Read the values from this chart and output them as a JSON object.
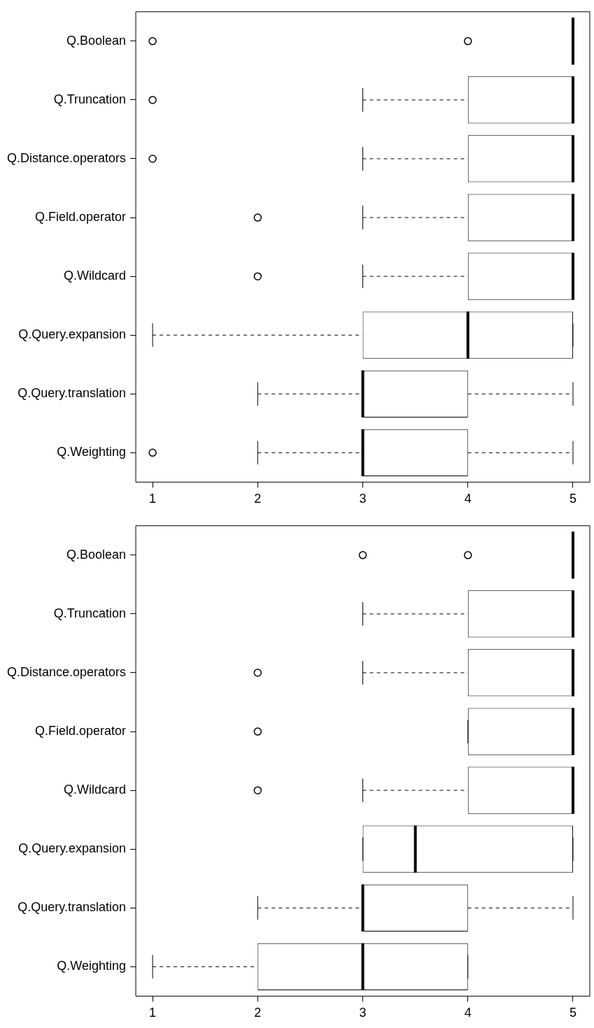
{
  "chart_data": [
    {
      "type": "box",
      "orientation": "horizontal",
      "grid": false,
      "categories": [
        "Q.Boolean",
        "Q.Truncation",
        "Q.Distance.operators",
        "Q.Field.operator",
        "Q.Wildcard",
        "Q.Query.expansion",
        "Q.Query.translation",
        "Q.Weighting"
      ],
      "boxes": [
        {
          "low": 5,
          "q1": 5,
          "median": 5,
          "q3": 5,
          "high": 5,
          "outliers": [
            1,
            4
          ]
        },
        {
          "low": 3,
          "q1": 4,
          "median": 5,
          "q3": 5,
          "high": 5,
          "outliers": [
            1
          ]
        },
        {
          "low": 3,
          "q1": 4,
          "median": 5,
          "q3": 5,
          "high": 5,
          "outliers": [
            1
          ]
        },
        {
          "low": 3,
          "q1": 4,
          "median": 5,
          "q3": 5,
          "high": 5,
          "outliers": [
            2
          ]
        },
        {
          "low": 3,
          "q1": 4,
          "median": 5,
          "q3": 5,
          "high": 5,
          "outliers": [
            2
          ]
        },
        {
          "low": 1,
          "q1": 3,
          "median": 4,
          "q3": 5,
          "high": 5
        },
        {
          "low": 2,
          "q1": 3,
          "median": 3,
          "q3": 4,
          "high": 5
        },
        {
          "low": 2,
          "q1": 3,
          "median": 3,
          "q3": 4,
          "high": 5,
          "outliers": [
            1
          ]
        }
      ],
      "xlim": [
        0.84,
        5.16
      ],
      "xticks": [
        1,
        2,
        3,
        4,
        5
      ]
    },
    {
      "type": "box",
      "orientation": "horizontal",
      "grid": false,
      "categories": [
        "Q.Boolean",
        "Q.Truncation",
        "Q.Distance.operators",
        "Q.Field.operator",
        "Q.Wildcard",
        "Q.Query.expansion",
        "Q.Query.translation",
        "Q.Weighting"
      ],
      "boxes": [
        {
          "low": 5,
          "q1": 5,
          "median": 5,
          "q3": 5,
          "high": 5,
          "outliers": [
            3,
            4
          ]
        },
        {
          "low": 3,
          "q1": 4,
          "median": 5,
          "q3": 5,
          "high": 5
        },
        {
          "low": 3,
          "q1": 4,
          "median": 5,
          "q3": 5,
          "high": 5,
          "outliers": [
            2
          ]
        },
        {
          "low": 4,
          "q1": 4,
          "median": 5,
          "q3": 5,
          "high": 5,
          "outliers": [
            2
          ]
        },
        {
          "low": 3,
          "q1": 4,
          "median": 5,
          "q3": 5,
          "high": 5,
          "outliers": [
            2
          ]
        },
        {
          "low": 3,
          "q1": 3,
          "median": 3.5,
          "q3": 5,
          "high": 5
        },
        {
          "low": 2,
          "q1": 3,
          "median": 3,
          "q3": 4,
          "high": 5
        },
        {
          "low": 1,
          "q1": 2,
          "median": 3,
          "q3": 4,
          "high": 4
        }
      ],
      "xlim": [
        0.84,
        5.16
      ],
      "xticks": [
        1,
        2,
        3,
        4,
        5
      ]
    }
  ]
}
